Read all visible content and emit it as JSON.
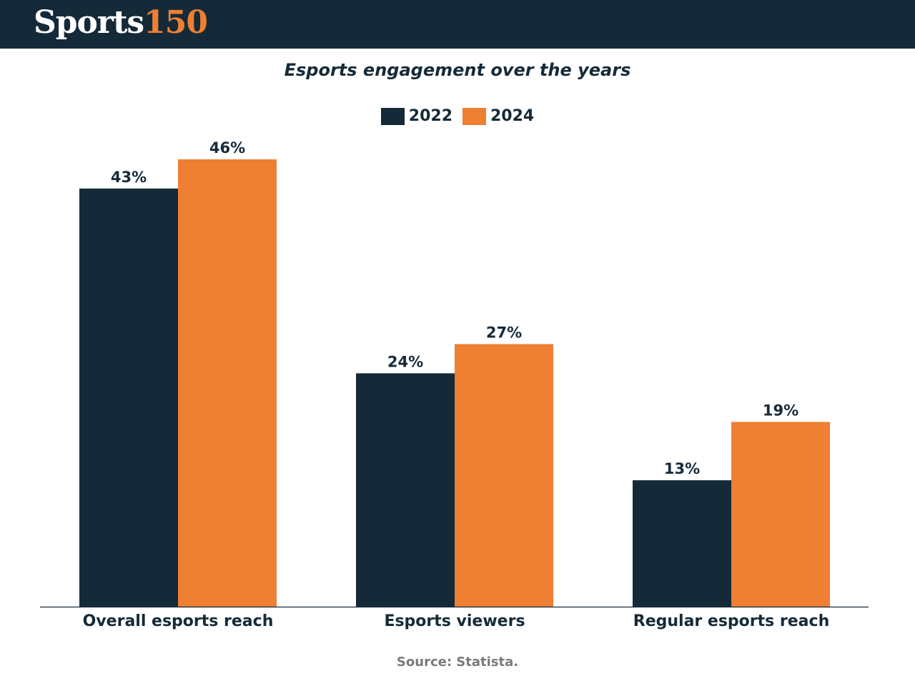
{
  "brand": {
    "word": "Sports",
    "number": "150"
  },
  "colors": {
    "header_bg": "#152a38",
    "brand_accent": "#ee7f33",
    "series_2022": "#152a38",
    "series_2024": "#ee7f33",
    "source_text": "#7a7a7a"
  },
  "chart_data": {
    "type": "bar",
    "title": "Esports engagement over the years",
    "categories": [
      "Overall esports reach",
      "Esports viewers",
      "Regular esports reach"
    ],
    "series": [
      {
        "name": "2022",
        "values": [
          43,
          24,
          13
        ],
        "labels": [
          "43%",
          "24%",
          "13%"
        ],
        "color": "#152a38"
      },
      {
        "name": "2024",
        "values": [
          46,
          27,
          19
        ],
        "labels": [
          "46%",
          "27%",
          "19%"
        ],
        "color": "#ee7f33"
      }
    ],
    "ylim": [
      0,
      46
    ],
    "grid": false,
    "legend": "top-center",
    "xlabel": "",
    "ylabel": ""
  },
  "source": "Source: Statista."
}
